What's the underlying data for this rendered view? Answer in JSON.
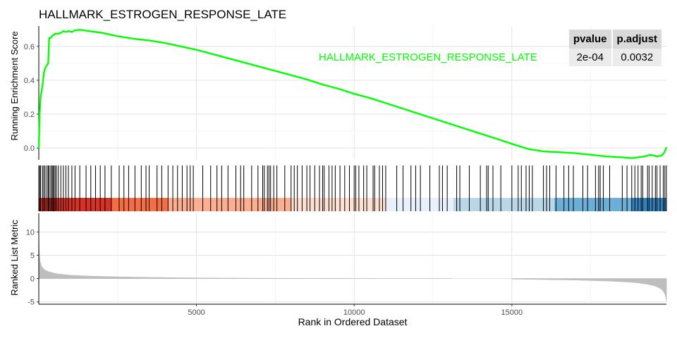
{
  "chart_data": {
    "type": "line",
    "title": "HALLMARK_ESTROGEN_RESPONSE_LATE",
    "xlabel": "Rank in Ordered Dataset",
    "xlim": [
      1,
      19900
    ],
    "x_ticks": [
      "5000",
      "10000",
      "15000"
    ],
    "colors": {
      "line": "#00ff00",
      "hits": "#000000",
      "metric_fill": "#bebebe"
    },
    "panels": [
      {
        "name": "running-enrichment",
        "ylabel": "Running Enrichment Score",
        "ylim": [
          -0.07,
          0.72
        ],
        "y_ticks": [
          "0.0",
          "0.2",
          "0.4",
          "0.6"
        ],
        "series": [
          {
            "name": "HALLMARK_ESTROGEN_RESPONSE_LATE",
            "x": [
              1,
              30,
              60,
              120,
              160,
              200,
              260,
              300,
              330,
              380,
              420,
              450,
              480,
              500,
              520,
              560,
              620,
              700,
              780,
              860,
              940,
              1050,
              1150,
              1300,
              1600,
              2000,
              2500,
              3000,
              3500,
              4000,
              4500,
              5000,
              5500,
              6000,
              6500,
              7000,
              7500,
              8000,
              8500,
              9000,
              9500,
              10000,
              10500,
              11000,
              11500,
              12000,
              12500,
              13000,
              13500,
              14000,
              14500,
              15000,
              15500,
              16000,
              16500,
              17000,
              17500,
              18000,
              18500,
              18800,
              19000,
              19200,
              19400,
              19600,
              19750,
              19820,
              19870,
              19900
            ],
            "values": [
              0.0,
              0.21,
              0.3,
              0.37,
              0.44,
              0.47,
              0.49,
              0.5,
              0.65,
              0.65,
              0.66,
              0.665,
              0.67,
              0.67,
              0.675,
              0.675,
              0.675,
              0.68,
              0.69,
              0.685,
              0.69,
              0.685,
              0.695,
              0.698,
              0.69,
              0.68,
              0.66,
              0.645,
              0.635,
              0.62,
              0.6,
              0.58,
              0.555,
              0.53,
              0.505,
              0.48,
              0.455,
              0.43,
              0.405,
              0.375,
              0.35,
              0.32,
              0.295,
              0.265,
              0.235,
              0.205,
              0.175,
              0.145,
              0.115,
              0.085,
              0.055,
              0.025,
              -0.005,
              -0.02,
              -0.025,
              -0.03,
              -0.04,
              -0.05,
              -0.055,
              -0.06,
              -0.055,
              -0.05,
              -0.04,
              -0.05,
              -0.045,
              -0.03,
              -0.01,
              0.005
            ]
          }
        ]
      },
      {
        "name": "gene-hits",
        "hit_positions": [
          1,
          30,
          60,
          120,
          160,
          200,
          260,
          300,
          330,
          380,
          420,
          450,
          480,
          520,
          560,
          620,
          700,
          780,
          860,
          940,
          1050,
          1150,
          1300,
          1500,
          1650,
          1800,
          1950,
          2100,
          2300,
          2550,
          2700,
          2850,
          3050,
          3250,
          3400,
          3500,
          3750,
          3900,
          4100,
          4250,
          4400,
          4550,
          4700,
          4800,
          4900,
          5200,
          5450,
          5650,
          5800,
          6000,
          6250,
          6400,
          6500,
          6750,
          6950,
          7100,
          7150,
          7250,
          7300,
          7350,
          7450,
          7550,
          7800,
          8000,
          8100,
          8200,
          8350,
          8500,
          8600,
          8750,
          8900,
          9000,
          9050,
          9200,
          9300,
          9400,
          9550,
          9700,
          9850,
          10000,
          10050,
          10150,
          10300,
          10400,
          10600,
          10650,
          10800,
          10900,
          11000,
          11350,
          11550,
          11800,
          11950,
          12100,
          12400,
          12700,
          12800,
          12950,
          13250,
          13350,
          13650,
          14000,
          14200,
          14250,
          14400,
          14650,
          15000,
          15200,
          15300,
          15450,
          15550,
          15650,
          16000,
          16100,
          16200,
          16400,
          16650,
          16800,
          16950,
          17250,
          17400,
          17650,
          17750,
          17800,
          17900,
          18100,
          18500,
          18650,
          18800,
          18900,
          19000,
          19100,
          19150,
          19300,
          19350,
          19450,
          19550,
          19600,
          19700,
          19800,
          19850,
          19900
        ],
        "rank_color_bands": [
          {
            "from": 1,
            "to": 2300,
            "color": "#d73027"
          },
          {
            "from": 2300,
            "to": 4100,
            "color": "#f46d43"
          },
          {
            "from": 4100,
            "to": 8000,
            "color": "#fcae91"
          },
          {
            "from": 8000,
            "to": 11000,
            "color": "#fee0d2"
          },
          {
            "from": 11000,
            "to": 13150,
            "color": "#e8f0fb"
          },
          {
            "from": 13150,
            "to": 16350,
            "color": "#b9d7e8"
          },
          {
            "from": 16350,
            "to": 18800,
            "color": "#6baed6"
          },
          {
            "from": 18800,
            "to": 19900,
            "color": "#3182bd"
          }
        ]
      },
      {
        "name": "ranked-metric",
        "ylabel": "Ranked List Metric",
        "ylim": [
          -5.5,
          14
        ],
        "y_ticks": [
          "10",
          "5",
          "0",
          "-5"
        ],
        "x": [
          1,
          3,
          6,
          10,
          15,
          20,
          30,
          40,
          60,
          80,
          100,
          150,
          200,
          300,
          400,
          600,
          800,
          1000,
          1500,
          2000,
          3000,
          4000,
          5000,
          7000,
          9000,
          11000,
          13100,
          14000,
          15000,
          16000,
          17000,
          18000,
          18500,
          19000,
          19300,
          19500,
          19650,
          19750,
          19800,
          19850,
          19880,
          19900
        ],
        "values": [
          12.0,
          9.5,
          8.2,
          7.0,
          6.0,
          5.3,
          4.4,
          3.8,
          3.2,
          2.8,
          2.5,
          2.1,
          1.8,
          1.5,
          1.3,
          1.0,
          0.85,
          0.72,
          0.55,
          0.45,
          0.3,
          0.2,
          0.12,
          0.05,
          0.02,
          0.0,
          0.0,
          -0.05,
          -0.1,
          -0.18,
          -0.3,
          -0.5,
          -0.65,
          -0.9,
          -1.2,
          -1.5,
          -1.9,
          -2.3,
          -2.7,
          -3.3,
          -3.9,
          -4.8
        ],
        "gap": [
          13150,
          14050
        ]
      }
    ],
    "stats_table": {
      "headers": [
        "pvalue",
        "p.adjust"
      ],
      "rows": [
        {
          "label": "HALLMARK_ESTROGEN_RESPONSE_LATE",
          "pvalue": "2e-04",
          "padjust": "0.0032"
        }
      ]
    }
  }
}
